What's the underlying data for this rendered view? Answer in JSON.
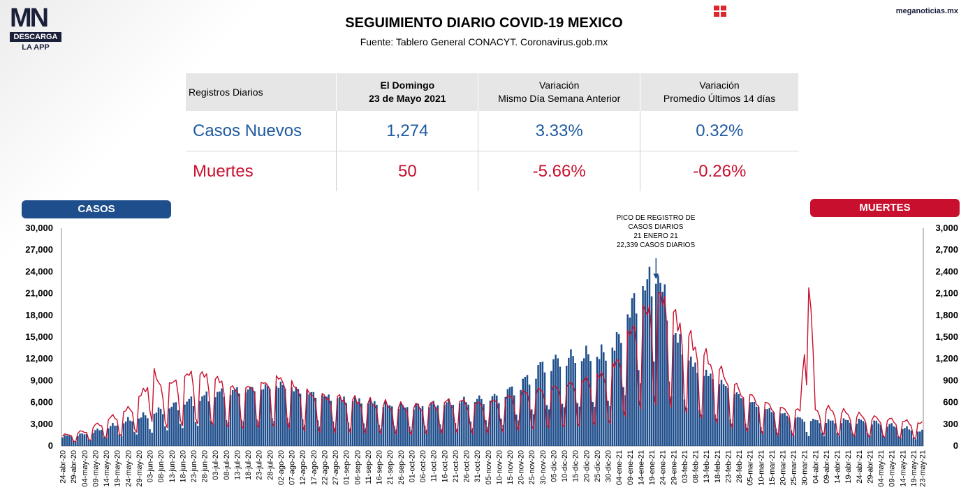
{
  "header": {
    "logo_main": "MN",
    "logo_bar": "DESCARGA",
    "logo_sub": "LA APP",
    "site": "meganoticias.mx",
    "title": "SEGUIMIENTO DIARIO COVID-19 MEXICO",
    "subtitle": "Fuente: Tablero General CONACYT. Coronavirus.gob.mx"
  },
  "table": {
    "headers": [
      "Registros Diarios",
      "El Domingo",
      "23 de Mayo 2021",
      "Variación",
      "Mismo Día Semana Anterior",
      "Variación",
      "Promedio Últimos 14 días"
    ],
    "rows": [
      {
        "label": "Casos Nuevos",
        "value": "1,274",
        "var_week": "3.33%",
        "var_avg": "0.32%"
      },
      {
        "label": "Muertes",
        "value": "50",
        "var_week": "-5.66%",
        "var_avg": "-0.26%"
      }
    ]
  },
  "labels": {
    "casos": "CASOS",
    "muertes": "MUERTES"
  },
  "colors": {
    "casos": "#1f4e8c",
    "muertes": "#c8102e",
    "text_blue": "#1f5aa0"
  },
  "chart_data": {
    "type": "bar",
    "left_axis_ticks": [
      "30,000",
      "27,000",
      "24,000",
      "21,000",
      "18,000",
      "15,000",
      "12,000",
      "9,000",
      "6,000",
      "3,000",
      "0"
    ],
    "right_axis_ticks": [
      "3,000",
      "2,700",
      "2,400",
      "2,100",
      "1,800",
      "1,500",
      "1,200",
      "900",
      "600",
      "300",
      "0"
    ],
    "ylim_casos": [
      0,
      30000
    ],
    "ylim_muertes": [
      0,
      3000
    ],
    "x_tick_labels": [
      "24-abr-20",
      "29-abr-20",
      "04-may-20",
      "09-may-20",
      "14-may-20",
      "19-may-20",
      "24-may-20",
      "29-may-20",
      "03-jun-20",
      "08-jun-20",
      "13-jun-20",
      "18-jun-20",
      "23-jun-20",
      "28-jun-20",
      "03-jul-20",
      "08-jul-20",
      "13-jul-20",
      "18-jul-20",
      "23-jul-20",
      "28-jul-20",
      "02-ago-20",
      "07-ago-20",
      "12-ago-20",
      "17-ago-20",
      "22-ago-20",
      "27-ago-20",
      "01-sep-20",
      "06-sep-20",
      "11-sep-20",
      "16-sep-20",
      "21-sep-20",
      "26-sep-20",
      "01-oct-20",
      "06-oct-20",
      "11-oct-20",
      "16-oct-20",
      "21-oct-20",
      "26-oct-20",
      "31-oct-20",
      "05-nov-20",
      "10-nov-20",
      "15-nov-20",
      "20-nov-20",
      "25-nov-20",
      "30-nov-20",
      "05-dic-20",
      "10-dic-20",
      "15-dic-20",
      "20-dic-20",
      "25-dic-20",
      "30-dic-20",
      "04-ene-21",
      "09-ene-21",
      "14-ene-21",
      "19-ene-21",
      "24-ene-21",
      "29-ene-21",
      "03-feb-21",
      "08-feb-21",
      "13-feb-21",
      "18-feb-21",
      "23-feb-21",
      "28-feb-21",
      "05-mar-21",
      "10-mar-21",
      "15-mar-21",
      "20-mar-21",
      "25-mar-21",
      "30-mar-21",
      "04-abr-21",
      "09-abr-21",
      "14-abr-21",
      "19-abr-21",
      "24-abr-21",
      "29-abr-21",
      "04-may-21",
      "09-may-21",
      "14-may-21",
      "19-may-21",
      "23-may-21"
    ],
    "series": [
      {
        "name": "CASOS",
        "kind": "bar",
        "anchors": [
          [
            0,
            1200
          ],
          [
            10,
            1500
          ],
          [
            20,
            2300
          ],
          [
            30,
            3200
          ],
          [
            40,
            4000
          ],
          [
            50,
            5000
          ],
          [
            60,
            5800
          ],
          [
            70,
            6600
          ],
          [
            80,
            7000
          ],
          [
            90,
            7200
          ],
          [
            100,
            7600
          ],
          [
            110,
            6800
          ],
          [
            120,
            6200
          ],
          [
            130,
            5800
          ],
          [
            140,
            5600
          ],
          [
            150,
            5100
          ],
          [
            160,
            4900
          ],
          [
            170,
            5200
          ],
          [
            180,
            5500
          ],
          [
            190,
            5800
          ],
          [
            200,
            6200
          ],
          [
            210,
            7800
          ],
          [
            220,
            10200
          ],
          [
            230,
            11000
          ],
          [
            240,
            11400
          ],
          [
            250,
            11600
          ],
          [
            255,
            13500
          ],
          [
            260,
            17000
          ],
          [
            265,
            19500
          ],
          [
            270,
            21000
          ],
          [
            273,
            21400
          ],
          [
            276,
            18500
          ],
          [
            280,
            14200
          ],
          [
            290,
            9800
          ],
          [
            300,
            8300
          ],
          [
            310,
            6300
          ],
          [
            320,
            4800
          ],
          [
            330,
            4000
          ],
          [
            340,
            3300
          ],
          [
            350,
            3100
          ],
          [
            360,
            3200
          ],
          [
            370,
            3100
          ],
          [
            380,
            2600
          ],
          [
            394,
            1800
          ]
        ],
        "weekly_pattern": [
          1.05,
          1.12,
          1.15,
          1.12,
          1.02,
          0.55,
          0.45
        ]
      },
      {
        "name": "MUERTES",
        "kind": "line",
        "anchors": [
          [
            0,
            120
          ],
          [
            10,
            170
          ],
          [
            20,
            300
          ],
          [
            30,
            420
          ],
          [
            38,
            650
          ],
          [
            40,
            1050
          ],
          [
            44,
            700
          ],
          [
            50,
            720
          ],
          [
            60,
            850
          ],
          [
            70,
            780
          ],
          [
            80,
            640
          ],
          [
            90,
            700
          ],
          [
            100,
            780
          ],
          [
            110,
            620
          ],
          [
            120,
            560
          ],
          [
            130,
            540
          ],
          [
            140,
            500
          ],
          [
            150,
            470
          ],
          [
            160,
            450
          ],
          [
            170,
            480
          ],
          [
            180,
            520
          ],
          [
            190,
            480
          ],
          [
            200,
            520
          ],
          [
            210,
            600
          ],
          [
            220,
            640
          ],
          [
            230,
            690
          ],
          [
            240,
            760
          ],
          [
            250,
            840
          ],
          [
            255,
            1000
          ],
          [
            260,
            1300
          ],
          [
            265,
            1500
          ],
          [
            270,
            1600
          ],
          [
            275,
            1720
          ],
          [
            280,
            1500
          ],
          [
            290,
            1150
          ],
          [
            300,
            900
          ],
          [
            310,
            650
          ],
          [
            320,
            500
          ],
          [
            330,
            420
          ],
          [
            338,
            400
          ],
          [
            342,
            2180
          ],
          [
            345,
            420
          ],
          [
            350,
            430
          ],
          [
            360,
            380
          ],
          [
            370,
            330
          ],
          [
            380,
            300
          ],
          [
            394,
            260
          ]
        ],
        "weekly_pattern": [
          1.2,
          1.25,
          1.2,
          1.15,
          1.0,
          0.45,
          0.35
        ]
      }
    ],
    "annotation": {
      "lines": [
        "PICO DE REGISTRO DE",
        "CASOS DIARIOS",
        "21 ENERO 21",
        "22,339 CASOS DIARIOS"
      ],
      "x_index": 272,
      "value": 22339
    },
    "n_days": 395
  }
}
